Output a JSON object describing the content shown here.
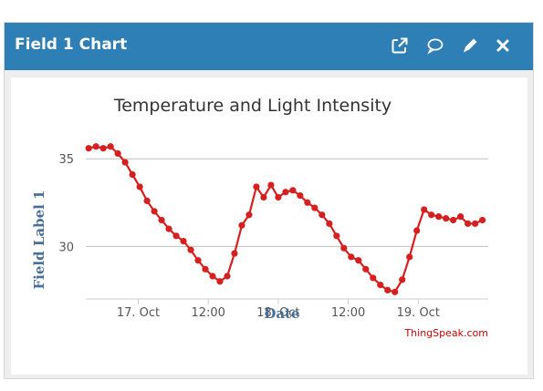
{
  "widget": {
    "title": "Field 1 Chart",
    "icons": [
      "external-link-icon",
      "comment-icon",
      "pencil-icon",
      "close-icon"
    ]
  },
  "colors": {
    "header_bg": "#2f7fb7",
    "series": "#d62020",
    "title_text": "#333333",
    "axis_label": "#4a6f95",
    "gridline": "#c0c0c0",
    "credit": "#cc0000"
  },
  "chart_data": {
    "type": "line",
    "title": "Temperature and Light Intensity",
    "xlabel": "Date",
    "ylabel": "Field Label 1",
    "x_ticks": [
      "17. Oct",
      "12:00",
      "18. Oct",
      "12:00",
      "19. Oct"
    ],
    "x_range": [
      "2016-10-16T15:00",
      "2016-10-19T12:00"
    ],
    "x_tick_values": [
      "2016-10-17T00:00",
      "2016-10-17T12:00",
      "2016-10-18T00:00",
      "2016-10-18T12:00",
      "2016-10-19T00:00"
    ],
    "y_ticks": [
      30,
      35
    ],
    "ylim": [
      27,
      36
    ],
    "grid": true,
    "legend": "none",
    "credit": "ThingSpeak.com",
    "series": [
      {
        "x": [
          "2016-10-16T15:30",
          "2016-10-16T16:45",
          "2016-10-16T18:00",
          "2016-10-16T19:15",
          "2016-10-16T20:30",
          "2016-10-16T21:45",
          "2016-10-16T23:00",
          "2016-10-17T00:15",
          "2016-10-17T01:30",
          "2016-10-17T02:45",
          "2016-10-17T04:00",
          "2016-10-17T05:15",
          "2016-10-17T06:30",
          "2016-10-17T07:45",
          "2016-10-17T09:00",
          "2016-10-17T10:15",
          "2016-10-17T11:30",
          "2016-10-17T12:45",
          "2016-10-17T14:00",
          "2016-10-17T15:15",
          "2016-10-17T16:30",
          "2016-10-17T17:45",
          "2016-10-17T19:00",
          "2016-10-17T20:15",
          "2016-10-17T21:30",
          "2016-10-17T22:45",
          "2016-10-18T00:00",
          "2016-10-18T01:15",
          "2016-10-18T02:30",
          "2016-10-18T03:45",
          "2016-10-18T05:00",
          "2016-10-18T06:15",
          "2016-10-18T07:30",
          "2016-10-18T08:45",
          "2016-10-18T10:00",
          "2016-10-18T11:15",
          "2016-10-18T12:30",
          "2016-10-18T13:45",
          "2016-10-18T15:00",
          "2016-10-18T16:15",
          "2016-10-18T17:30",
          "2016-10-18T18:45",
          "2016-10-18T20:00",
          "2016-10-18T21:15",
          "2016-10-18T22:30",
          "2016-10-18T23:45",
          "2016-10-19T01:00",
          "2016-10-19T02:15",
          "2016-10-19T03:30",
          "2016-10-19T04:45",
          "2016-10-19T06:00",
          "2016-10-19T07:15",
          "2016-10-19T08:30",
          "2016-10-19T09:45",
          "2016-10-19T11:00"
        ],
        "y": [
          35.6,
          35.7,
          35.6,
          35.7,
          35.3,
          34.8,
          34.1,
          33.4,
          32.6,
          32.0,
          31.5,
          31.0,
          30.6,
          30.3,
          29.8,
          29.2,
          28.7,
          28.3,
          28.0,
          28.3,
          29.6,
          31.2,
          31.8,
          33.4,
          32.8,
          33.5,
          32.8,
          33.1,
          33.2,
          32.9,
          32.5,
          32.2,
          31.8,
          31.3,
          30.6,
          29.9,
          29.4,
          29.2,
          28.7,
          28.2,
          27.8,
          27.5,
          27.4,
          28.1,
          29.4,
          30.9,
          32.1,
          31.8,
          31.7,
          31.6,
          31.5,
          31.7,
          31.3,
          31.3,
          31.5
        ]
      }
    ]
  }
}
